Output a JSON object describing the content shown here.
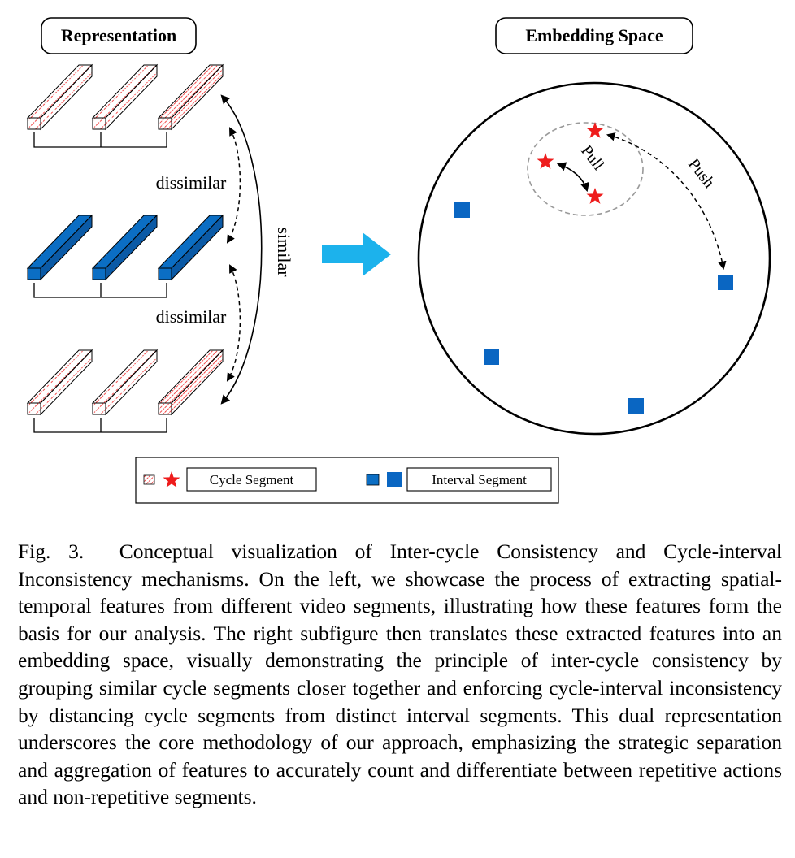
{
  "figure": {
    "left_title": "Representation",
    "right_title": "Embedding Space",
    "label_dissimilar_top": "dissimilar",
    "label_dissimilar_bottom": "dissimilar",
    "label_similar": "similar",
    "label_pull": "Pull",
    "label_push": "Push",
    "legend": {
      "cycle_label": "Cycle Segment",
      "interval_label": "Interval Segment"
    },
    "colors": {
      "cycle_red": "#ee1c1c",
      "interval_blue": "#0b6ec4",
      "interval_square": "#0a66c2",
      "arrow_cyan": "#1cb2ec",
      "dashed_circle": "#9a9a9a"
    },
    "icons": [
      "red-star-icon",
      "blue-square-icon",
      "cyan-arrow-icon"
    ]
  },
  "caption": {
    "label": "Fig. 3.",
    "text": "Conceptual visualization of Inter-cycle Consistency and Cycle-interval Inconsistency mechanisms. On the left, we showcase the process of extracting spatial-temporal features from different video segments, illustrating how these features form the basis for our analysis. The right subfigure then translates these extracted features into an embedding space, visually demonstrating the principle of inter-cycle consistency by grouping similar cycle segments closer together and enforcing cycle-interval inconsistency by distancing cycle segments from distinct interval segments. This dual representation underscores the core methodology of our approach, emphasizing the strategic separation and aggregation of features to accurately count and differentiate between repetitive actions and non-repetitive segments."
  }
}
